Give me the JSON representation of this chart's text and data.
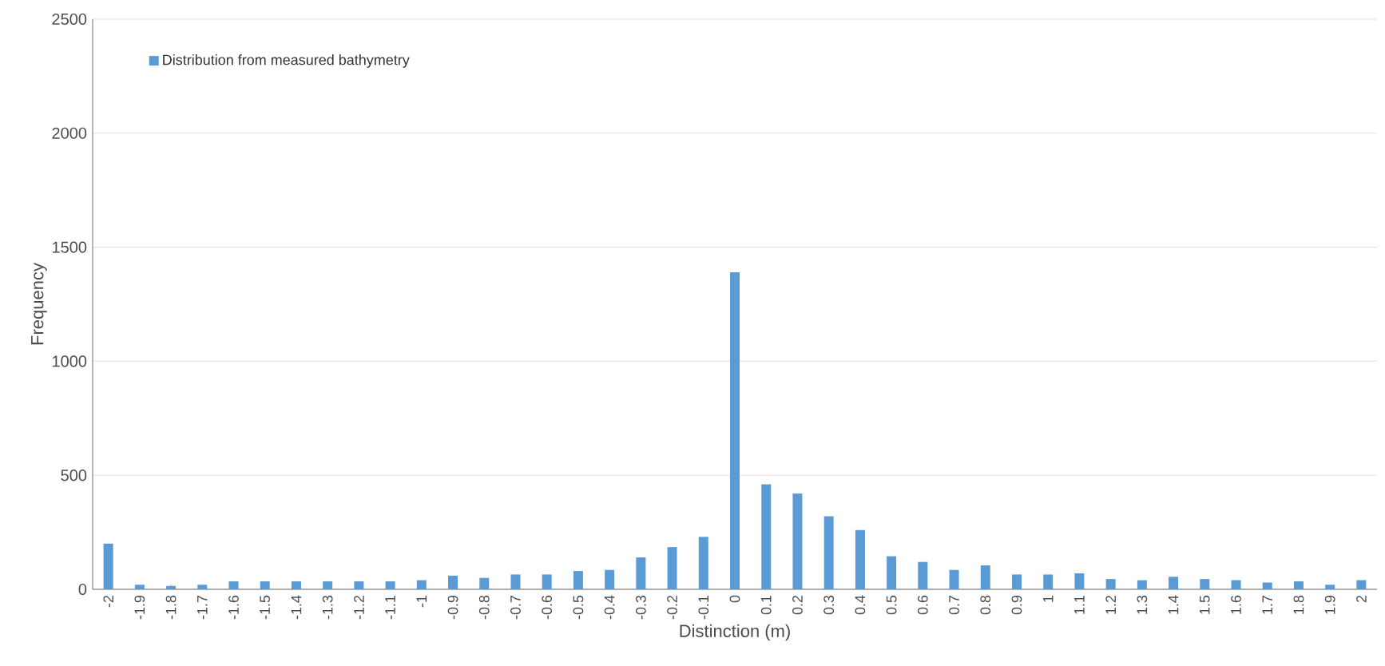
{
  "chart_data": {
    "type": "bar",
    "xlabel": "Distinction (m)",
    "ylabel": "Frequency",
    "categories": [
      "-2",
      "-1.9",
      "-1.8",
      "-1.7",
      "-1.6",
      "-1.5",
      "-1.4",
      "-1.3",
      "-1.2",
      "-1.1",
      "-1",
      "-0.9",
      "-0.8",
      "-0.7",
      "-0.6",
      "-0.5",
      "-0.4",
      "-0.3",
      "-0.2",
      "-0.1",
      "0",
      "0.1",
      "0.2",
      "0.3",
      "0.4",
      "0.5",
      "0.6",
      "0.7",
      "0.8",
      "0.9",
      "1",
      "1.1",
      "1.2",
      "1.3",
      "1.4",
      "1.5",
      "1.6",
      "1.7",
      "1.8",
      "1.9",
      "2"
    ],
    "series": [
      {
        "name": "Distribution from measured bathymetry",
        "color": "#5b9bd5",
        "values": [
          200,
          20,
          15,
          20,
          35,
          35,
          35,
          35,
          35,
          35,
          40,
          60,
          50,
          65,
          65,
          80,
          85,
          140,
          185,
          230,
          1390,
          460,
          420,
          320,
          260,
          145,
          120,
          85,
          105,
          65,
          65,
          70,
          45,
          40,
          55,
          45,
          40,
          30,
          35,
          20,
          40
        ]
      }
    ],
    "ylim": [
      0,
      2500
    ],
    "yticks": [
      0,
      500,
      1000,
      1500,
      2000,
      2500
    ],
    "grid": "y",
    "legend": "top left"
  }
}
